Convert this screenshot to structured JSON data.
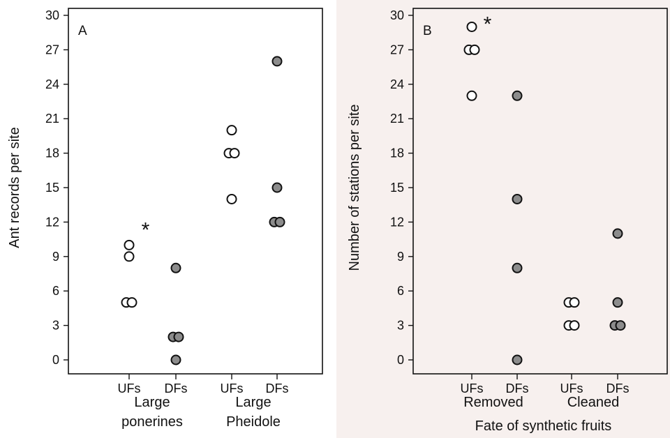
{
  "chart_data": [
    {
      "type": "scatter",
      "panel_label": "A",
      "ylabel": "Ant records per site",
      "ylim": [
        0,
        30
      ],
      "yticks": [
        0,
        3,
        6,
        9,
        12,
        15,
        18,
        21,
        24,
        27,
        30
      ],
      "categories": [
        "UFs",
        "DFs",
        "UFs",
        "DFs"
      ],
      "groups": [
        {
          "label_lines": [
            "Large",
            "ponerines"
          ],
          "categories": [
            0,
            1
          ]
        },
        {
          "label_lines": [
            "Large",
            "Pheidole"
          ],
          "categories": [
            2,
            3
          ]
        }
      ],
      "significance": [
        {
          "text": "*",
          "group": 0
        }
      ],
      "series": [
        {
          "name": "UFs",
          "fill": "#ffffff",
          "points": [
            {
              "category": 0,
              "y": 10
            },
            {
              "category": 0,
              "y": 9
            },
            {
              "category": 0,
              "y": 5
            },
            {
              "category": 0,
              "y": 5
            },
            {
              "category": 2,
              "y": 20
            },
            {
              "category": 2,
              "y": 18
            },
            {
              "category": 2,
              "y": 18
            },
            {
              "category": 2,
              "y": 14
            }
          ]
        },
        {
          "name": "DFs",
          "fill": "#8c8c8c",
          "points": [
            {
              "category": 1,
              "y": 8
            },
            {
              "category": 1,
              "y": 2
            },
            {
              "category": 1,
              "y": 2
            },
            {
              "category": 1,
              "y": 0
            },
            {
              "category": 3,
              "y": 26
            },
            {
              "category": 3,
              "y": 15
            },
            {
              "category": 3,
              "y": 12
            },
            {
              "category": 3,
              "y": 12
            }
          ]
        }
      ],
      "background": "#ffffff"
    },
    {
      "type": "scatter",
      "panel_label": "B",
      "ylabel": "Number of stations per site",
      "xlabel": "Fate of synthetic fruits",
      "ylim": [
        0,
        30
      ],
      "yticks": [
        0,
        3,
        6,
        9,
        12,
        15,
        18,
        21,
        24,
        27,
        30
      ],
      "categories": [
        "UFs",
        "DFs",
        "UFs",
        "DFs"
      ],
      "groups": [
        {
          "label_lines": [
            "Removed"
          ],
          "categories": [
            0,
            1
          ]
        },
        {
          "label_lines": [
            "Cleaned"
          ],
          "categories": [
            2,
            3
          ]
        }
      ],
      "significance": [
        {
          "text": "*",
          "group": 0
        }
      ],
      "series": [
        {
          "name": "UFs",
          "fill": "#ffffff",
          "points": [
            {
              "category": 0,
              "y": 29
            },
            {
              "category": 0,
              "y": 27
            },
            {
              "category": 0,
              "y": 27
            },
            {
              "category": 0,
              "y": 23
            },
            {
              "category": 2,
              "y": 5
            },
            {
              "category": 2,
              "y": 5
            },
            {
              "category": 2,
              "y": 3
            },
            {
              "category": 2,
              "y": 3
            }
          ]
        },
        {
          "name": "DFs",
          "fill": "#8c8c8c",
          "points": [
            {
              "category": 1,
              "y": 23
            },
            {
              "category": 1,
              "y": 14
            },
            {
              "category": 1,
              "y": 8
            },
            {
              "category": 1,
              "y": 0
            },
            {
              "category": 3,
              "y": 11
            },
            {
              "category": 3,
              "y": 5
            },
            {
              "category": 3,
              "y": 3
            },
            {
              "category": 3,
              "y": 3
            }
          ]
        }
      ],
      "background": "#f7f0ee"
    }
  ]
}
